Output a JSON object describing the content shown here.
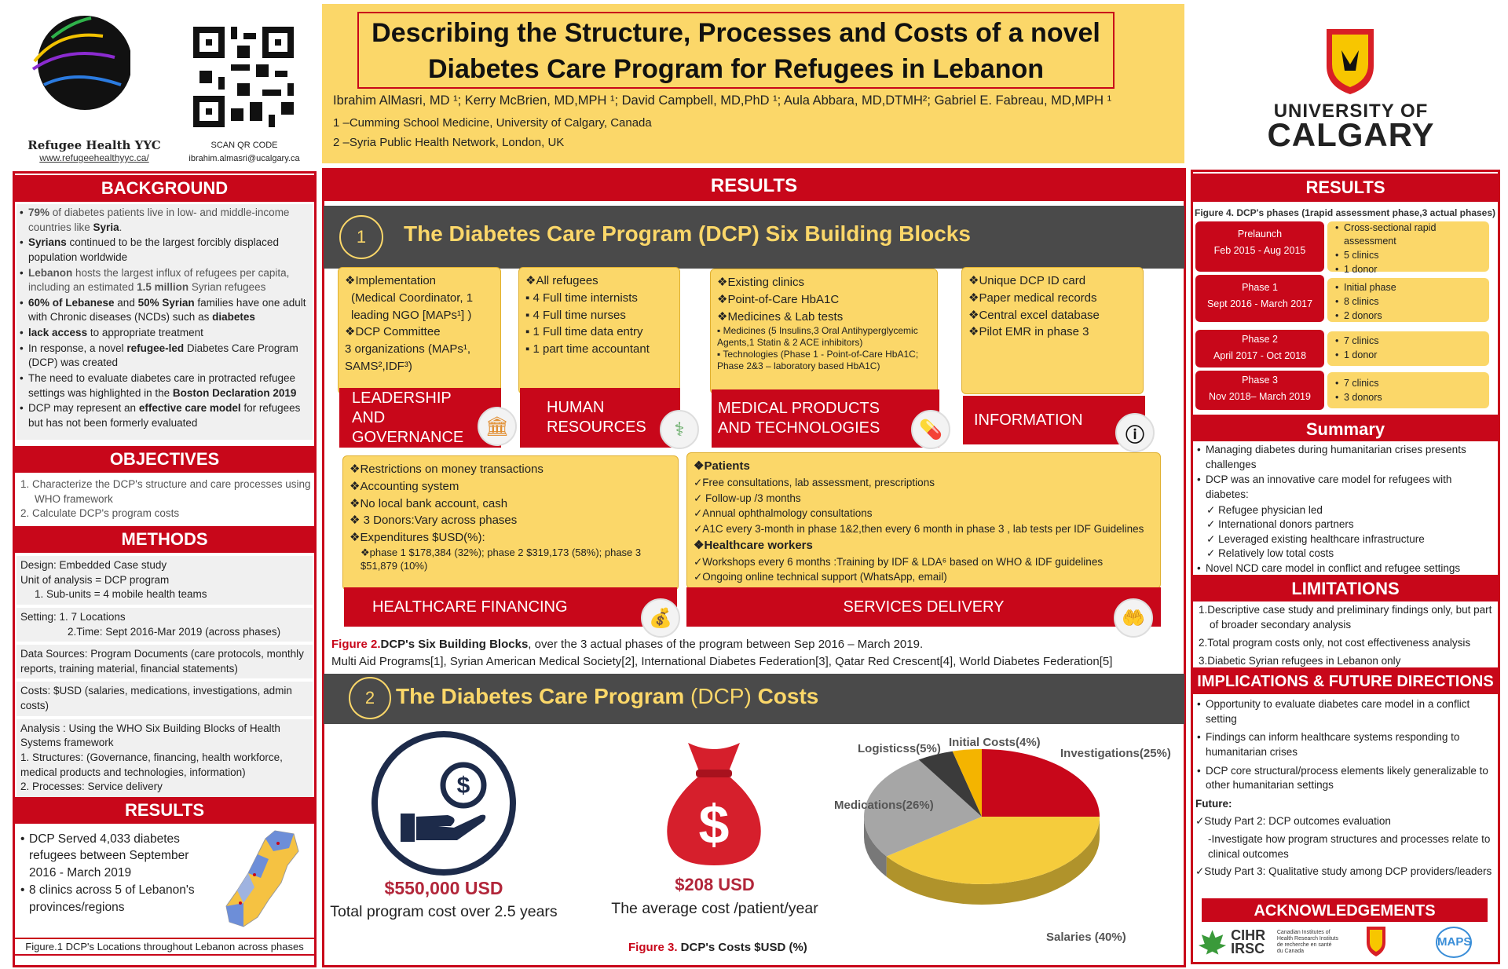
{
  "header": {
    "title_line1": "Describing the Structure, Processes and Costs of a novel",
    "title_line2": "Diabetes Care Program for Refugees in Lebanon",
    "authors": "Ibrahim AlMasri, MD ¹; Kerry McBrien, MD,MPH ¹; David Campbell, MD,PhD ¹; Aula Abbara, MD,DTMH²; Gabriel E. Fabreau, MD,MPH ¹",
    "affil1": "1 –Cumming School Medicine, University of Calgary, Canada",
    "affil2": "2 –Syria Public Health Network, London, UK"
  },
  "logo": {
    "org": "Refugee Health YYC",
    "url": "www.refugeehealthyyc.ca/",
    "qr_label": "SCAN QR CODE",
    "email": "ibrahim.almasri@ucalgary.ca",
    "uni_line1": "UNIVERSITY OF",
    "uni_line2": "CALGARY"
  },
  "background": {
    "heading": "BACKGROUND",
    "items": [
      "79% of diabetes patients live in low- and middle-income countries like Syria.",
      "Syrians continued to be the largest forcibly displaced population worldwide",
      "Lebanon hosts the largest influx of refugees per capita, including an estimated 1.5 million Syrian refugees",
      "60% of Lebanese and 50% Syrian families have one adult with Chronic diseases (NCDs) such as diabetes",
      "lack access to appropriate treatment",
      "In response, a novel refugee-led Diabetes Care Program (DCP) was created",
      "The need to evaluate diabetes care in protracted refugee settings was highlighted in the Boston Declaration 2019",
      "DCP may represent an effective care model for refugees but has not been formerly evaluated"
    ]
  },
  "objectives": {
    "heading": "OBJECTIVES",
    "items": [
      "1.  Characterize the DCP's structure and care processes using WHO framework",
      "2.  Calculate DCP's program costs"
    ]
  },
  "methods": {
    "heading": "METHODS",
    "design": "Design: Embedded Case study",
    "unit": "Unit of analysis = DCP program",
    "subunits": "1.  Sub-units = 4 mobile health teams",
    "setting1": "Setting:  1. 7 Locations",
    "setting2": "2.Time: Sept 2016-Mar 2019 (across phases)",
    "data_sources": "Data Sources: Program Documents (care protocols, monthly reports, training material, financial statements)",
    "costs": "Costs: $USD (salaries, medications, investigations, admin costs)",
    "analysis": "Analysis : Using the WHO Six Building Blocks of Health Systems framework",
    "structures": "1. Structures: (Governance, financing, health workforce, medical products and technologies, information)",
    "processes": "2. Processes: Service delivery"
  },
  "results_left": {
    "heading": "RESULTS",
    "item1": "DCP Served 4,033 diabetes refugees between September 2016 - March 2019",
    "item2": "8 clinics across 5 of Lebanon's provinces/regions",
    "fig_caption": "Figure.1 DCP's Locations throughout Lebanon across phases"
  },
  "center": {
    "results_heading": "RESULTS",
    "sec1_num": "1",
    "sec1_title": "The Diabetes Care Program (DCP) Six Building Blocks",
    "lg_items": [
      "❖Implementation",
      "(Medical Coordinator, 1 leading NGO [MAPs¹] )",
      "❖DCP Committee",
      "3 organizations (MAPs¹, SAMS²,IDF³)"
    ],
    "lg_label": "LEADERSHIP AND GOVERNANCE",
    "hr_items": [
      "❖All refugees",
      "▪ 4 Full time internists",
      "▪ 4 Full time nurses",
      "▪ 1 Full time data entry",
      "▪ 1 part time accountant"
    ],
    "hr_label": "HUMAN RESOURCES",
    "mp_items": [
      "❖Existing clinics",
      "❖Point-of-Care HbA1C",
      "❖Medicines & Lab tests",
      "▪ Medicines (5 Insulins,3 Oral Antihyperglycemic Agents,1 Statin & 2 ACE inhibitors)",
      "▪ Technologies (Phase 1 - Point-of-Care HbA1C; Phase 2&3 – laboratory based HbA1C)"
    ],
    "mp_label": "MEDICAL PRODUCTS AND TECHNOLOGIES",
    "info_items": [
      "❖Unique DCP ID card",
      "❖Paper medical records",
      "❖Central excel database",
      "❖Pilot EMR in phase 3"
    ],
    "info_label": "INFORMATION",
    "hf_items": [
      "❖Restrictions on money transactions",
      "❖Accounting system",
      "❖No local bank account, cash",
      "❖ 3 Donors:Vary across phases",
      "❖Expenditures $USD(%):",
      "❖phase 1 $178,384 (32%); phase 2 $319,173 (58%); phase 3 $51,879 (10%)"
    ],
    "hf_label": "HEALTHCARE FINANCING",
    "sd_items": [
      "❖Patients",
      "✓Free consultations, lab assessment, prescriptions",
      "✓ Follow-up /3 months",
      "✓Annual ophthalmology consultations",
      "✓A1C every 3-month in phase 1&2,then every 6 month in phase 3 , lab tests per IDF Guidelines",
      "❖Healthcare workers",
      "✓Workshops every 6 months :Training by IDF & LDA⁶ based on WHO & IDF guidelines",
      "✓Ongoing online technical support (WhatsApp, email)"
    ],
    "sd_label": "SERVICES DELIVERY",
    "fig2_a": "Figure 2.",
    "fig2_b": "DCP's Six Building Blocks",
    "fig2_c": ", over the 3 actual phases of the program between Sep 2016 – March 2019.",
    "fig2_line2": "Multi Aid Programs[1], Syrian American Medical Society[2], International Diabetes Federation[3], Qatar Red Crescent[4], World Diabetes Federation[5]",
    "sec2_num": "2",
    "sec2_title_a": "The Diabetes Care Program ",
    "sec2_title_b": "(DCP)",
    "sec2_title_c": " Costs",
    "cost_total": "$550,000 USD",
    "cost_total_label": "Total program cost over 2.5 years",
    "cost_avg": "$208 USD",
    "cost_avg_label": "The average cost /patient/year",
    "fig3_a": "Figure 3.",
    "fig3_b": " DCP's Costs $USD (%)"
  },
  "chart_data": {
    "type": "pie",
    "categories": [
      "Investigations",
      "Salaries",
      "Medications",
      "Logisticss",
      "Initial Costs"
    ],
    "values": [
      25,
      40,
      26,
      5,
      4
    ],
    "labels": [
      "Investigations(25%)",
      "Salaries (40%)",
      "Medications(26%)",
      "Logisticss(5%)",
      "Initial Costs(4%)"
    ],
    "colors": [
      "#c8071a",
      "#f5cc3c",
      "#a6a6a6",
      "#3b3b3b",
      "#f4b400"
    ]
  },
  "right": {
    "results_heading": "RESULTS",
    "fig4": "Figure 4. DCP's phases (1rapid assessment phase,3 actual phases)",
    "phases": [
      {
        "name": "Prelaunch",
        "dates": "Feb 2015 - Aug 2015",
        "details": [
          "Cross-sectional rapid assessment",
          "5 clinics",
          "1 donor"
        ]
      },
      {
        "name": "Phase 1",
        "dates": "Sept 2016 - March 2017",
        "details": [
          "Initial phase",
          "8 clinics",
          "2 donors"
        ]
      },
      {
        "name": "Phase 2",
        "dates": "April 2017 - Oct 2018",
        "details": [
          "7 clinics",
          "1 donor"
        ]
      },
      {
        "name": "Phase 3",
        "dates": "Nov 2018– March 2019",
        "details": [
          "7 clinics",
          "3 donors"
        ]
      }
    ],
    "summary_heading": "Summary",
    "summary1": "Managing diabetes during humanitarian crises presents challenges",
    "summary2": "DCP was an innovative care model for refugees with diabetes:",
    "summary_sub": [
      "Refugee physician led",
      "International donors partners",
      "Leveraged existing healthcare infrastructure",
      "Relatively low total costs"
    ],
    "summary3": "Novel NCD care model in conflict and refugee settings",
    "limitations_heading": "LIMITATIONS",
    "limitations": [
      "1.Descriptive case study and preliminary findings only, but part of broader secondary analysis",
      "2.Total program costs only, not cost effectiveness analysis",
      "3.Diabetic Syrian refugees in Lebanon only"
    ],
    "impl_heading": "IMPLICATIONS & FUTURE DIRECTIONS",
    "impl": [
      "Opportunity to evaluate diabetes care model in a conflict setting",
      "Findings can inform healthcare systems responding to humanitarian crises",
      "DCP core structural/process elements likely generalizable to other humanitarian settings"
    ],
    "future_label": "Future:",
    "future1": "✓Study Part 2: DCP outcomes evaluation",
    "future1b": "-Investigate how program structures and processes relate to clinical outcomes",
    "future2": "✓Study Part 3: Qualitative study among DCP providers/leaders",
    "ack_heading": "ACKNOWLEDGEMENTS",
    "ack_cihr": "CIHR IRSC",
    "ack_cihr_small": "Canadian Institutes of Health Research  Instituts de recherche en santé du Canada",
    "ack_maps": "MAPS"
  }
}
